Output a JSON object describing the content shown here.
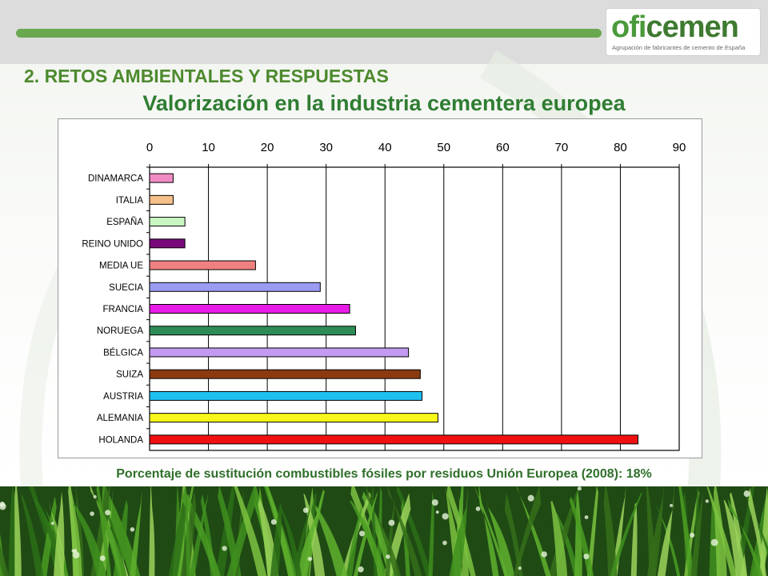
{
  "header": {
    "logo_text": "oficemen",
    "logo_subtitle": "Agrupación de fabricantes de cemento de España",
    "brand_color": "#4a9a3b"
  },
  "section_title": "2. RETOS AMBIENTALES Y RESPUESTAS",
  "slide_title": "Valorización en la industria cementera europea",
  "caption": "Porcentaje de sustitución combustibles fósiles por residuos Unión Europea (2008): 18%",
  "chart_data": {
    "type": "bar",
    "orientation": "horizontal",
    "title": "",
    "xlabel": "",
    "ylabel": "",
    "xlim": [
      0,
      90
    ],
    "x_ticks": [
      0,
      10,
      20,
      30,
      40,
      50,
      60,
      70,
      80,
      90
    ],
    "axis_position": "top",
    "grid": true,
    "legend": "none",
    "categories": [
      "DINAMARCA",
      "ITALIA",
      "ESPAÑA",
      "REINO UNIDO",
      "MEDIA UE",
      "SUECIA",
      "FRANCIA",
      "NORUEGA",
      "BÉLGICA",
      "SUIZA",
      "AUSTRIA",
      "ALEMANIA",
      "HOLANDA"
    ],
    "values": [
      4,
      4,
      6,
      6,
      18,
      29,
      34,
      35,
      44,
      46,
      46.3,
      49,
      83
    ],
    "colors": [
      "#f08cc4",
      "#f7c08a",
      "#c9f7c2",
      "#7a0a7a",
      "#f08080",
      "#9b9bf3",
      "#e81ce8",
      "#2e8b57",
      "#c39af0",
      "#8b3a10",
      "#1ec0f0",
      "#f7f71a",
      "#f01010"
    ]
  }
}
